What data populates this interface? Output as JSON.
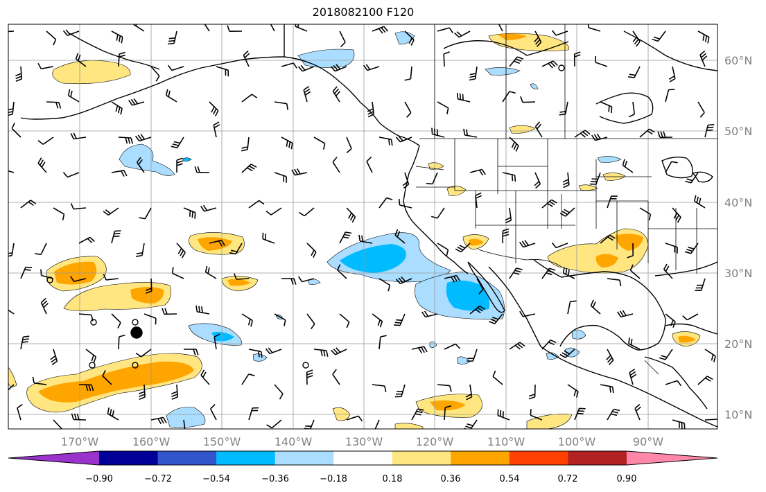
{
  "title": "2018082100 F120",
  "map": {
    "lat_labels": [
      "60°N",
      "50°N",
      "40°N",
      "30°N",
      "20°N",
      "10°N"
    ],
    "lat_values": [
      60,
      50,
      40,
      30,
      20,
      10
    ],
    "lon_labels": [
      "170°W",
      "160°W",
      "150°W",
      "140°W",
      "130°W",
      "120°W",
      "110°W",
      "100°W",
      "90°W"
    ],
    "lon_values": [
      -170,
      -160,
      -150,
      -140,
      -130,
      -120,
      -110,
      -100,
      -90
    ],
    "extent": {
      "lon_min": -180,
      "lon_max": -80,
      "lat_min": 8,
      "lat_max": 65
    },
    "gridlines": true,
    "coastlines": true,
    "borders": true
  },
  "colorbar": {
    "orientation": "horizontal",
    "extend": "both",
    "tick_labels": [
      "−0.90",
      "−0.72",
      "−0.54",
      "−0.36",
      "−0.18",
      "0.18",
      "0.36",
      "0.54",
      "0.72",
      "0.90"
    ],
    "levels": [
      -0.9,
      -0.72,
      -0.54,
      -0.36,
      -0.18,
      0.18,
      0.36,
      0.54,
      0.72,
      0.9
    ],
    "colors": [
      "#9933cc",
      "#000099",
      "#3355cc",
      "#00bbff",
      "#aaddff",
      "#ffffff",
      "#ffe680",
      "#ffa500",
      "#ff4000",
      "#b22222",
      "#ff88aa"
    ]
  },
  "colors": {
    "positive_light": "#ffe680",
    "positive_mid": "#ffa500",
    "negative_light": "#aaddff",
    "negative_mid": "#00bbff",
    "grid": "#999999"
  }
}
